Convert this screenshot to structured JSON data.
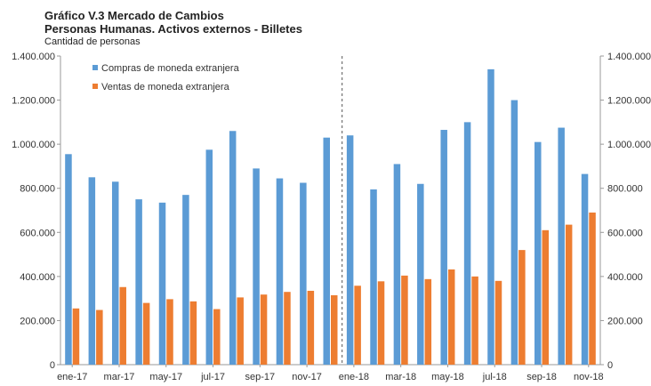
{
  "chart_data": {
    "type": "bar",
    "title": "Gráfico V.3 Mercado de Cambios",
    "subtitle": "Personas Humanas. Activos externos - Billetes",
    "ylabel": "Cantidad de personas",
    "ylim": [
      0,
      1400000
    ],
    "yticks": [
      "0",
      "200.000",
      "400.000",
      "600.000",
      "800.000",
      "1.000.000",
      "1.200.000",
      "1.400.000"
    ],
    "yticks_right": [
      "0",
      "200.000",
      "400.000",
      "600.000",
      "800.000",
      "1.000.000",
      "1.200.000",
      "1.400.000"
    ],
    "categories": [
      "ene-17",
      "feb-17",
      "mar-17",
      "abr-17",
      "may-17",
      "jun-17",
      "jul-17",
      "ago-17",
      "sep-17",
      "oct-17",
      "nov-17",
      "dic-17",
      "ene-18",
      "feb-18",
      "mar-18",
      "abr-18",
      "may-18",
      "jun-18",
      "jul-18",
      "ago-18",
      "sep-18",
      "oct-18",
      "nov-18"
    ],
    "xtick_labels": [
      "ene-17",
      "mar-17",
      "may-17",
      "jul-17",
      "sep-17",
      "nov-17",
      "ene-18",
      "mar-18",
      "may-18",
      "jul-18",
      "sep-18",
      "nov-18"
    ],
    "series": [
      {
        "name": "Compras de moneda extranjera",
        "color": "#5b9bd5",
        "values": [
          955000,
          850000,
          830000,
          750000,
          735000,
          770000,
          975000,
          1060000,
          890000,
          845000,
          825000,
          1030000,
          1040000,
          795000,
          910000,
          820000,
          1065000,
          1100000,
          1340000,
          1200000,
          1010000,
          1075000,
          865000
        ]
      },
      {
        "name": "Ventas de moneda extranjera",
        "color": "#ed7d31",
        "values": [
          255000,
          248000,
          352000,
          280000,
          297000,
          287000,
          252000,
          305000,
          318000,
          330000,
          335000,
          315000,
          358000,
          378000,
          404000,
          388000,
          432000,
          400000,
          380000,
          520000,
          610000,
          635000,
          690000
        ]
      }
    ],
    "divider_after_category": "dic-17",
    "legend_position": "top-left",
    "grid": false
  }
}
